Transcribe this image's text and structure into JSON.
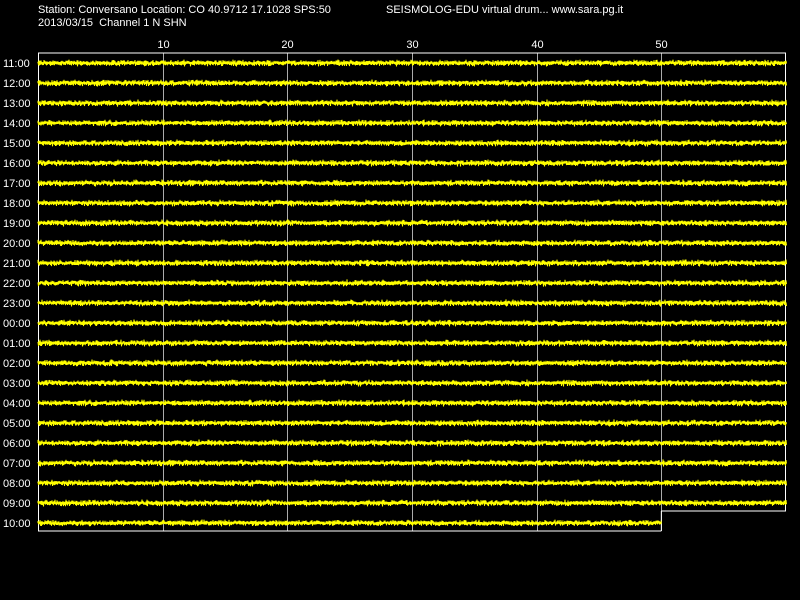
{
  "header": {
    "station_line": "Station: Conversano Location: CO 40.9712 17.1028 SPS:50",
    "date_line": "2013/03/15  Channel 1 N SHN",
    "product_line": "SEISMOLOG-EDU virtual drum... www.sara.pg.it"
  },
  "colors": {
    "background": "#000000",
    "trace": "#ffff00",
    "grid": "#ffffff",
    "text": "#ffffff"
  },
  "chart_data": {
    "type": "line",
    "title": "",
    "xlabel": "",
    "ylabel": "",
    "xlim": [
      0,
      60
    ],
    "x_tick_labels": [
      10,
      20,
      30,
      40,
      50
    ],
    "grid": "vertical",
    "rows": [
      {
        "label": "11:00",
        "end_minute": 60
      },
      {
        "label": "12:00",
        "end_minute": 60
      },
      {
        "label": "13:00",
        "end_minute": 60
      },
      {
        "label": "14:00",
        "end_minute": 60
      },
      {
        "label": "15:00",
        "end_minute": 60
      },
      {
        "label": "16:00",
        "end_minute": 60
      },
      {
        "label": "17:00",
        "end_minute": 60
      },
      {
        "label": "18:00",
        "end_minute": 60
      },
      {
        "label": "19:00",
        "end_minute": 60
      },
      {
        "label": "20:00",
        "end_minute": 60
      },
      {
        "label": "21:00",
        "end_minute": 60
      },
      {
        "label": "22:00",
        "end_minute": 60
      },
      {
        "label": "23:00",
        "end_minute": 60
      },
      {
        "label": "00:00",
        "end_minute": 60
      },
      {
        "label": "01:00",
        "end_minute": 60
      },
      {
        "label": "02:00",
        "end_minute": 60
      },
      {
        "label": "03:00",
        "end_minute": 60
      },
      {
        "label": "04:00",
        "end_minute": 60
      },
      {
        "label": "05:00",
        "end_minute": 60
      },
      {
        "label": "06:00",
        "end_minute": 60
      },
      {
        "label": "07:00",
        "end_minute": 60
      },
      {
        "label": "08:00",
        "end_minute": 60
      },
      {
        "label": "09:00",
        "end_minute": 60
      },
      {
        "label": "10:00",
        "end_minute": 50
      }
    ]
  }
}
